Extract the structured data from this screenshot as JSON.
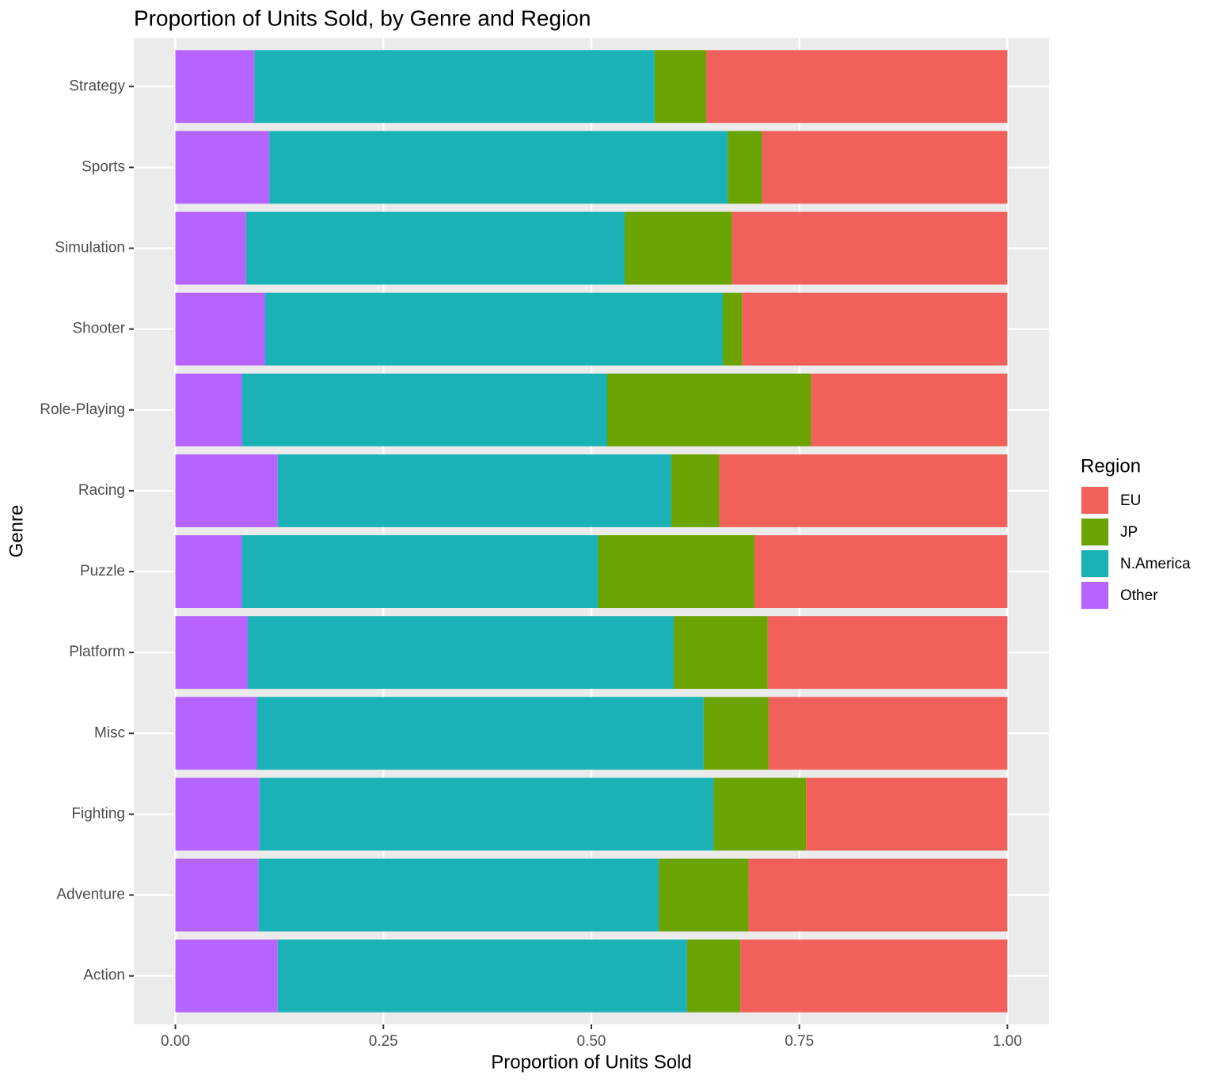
{
  "chart_data": {
    "type": "stacked-barh",
    "title": "Proportion of Units Sold, by Genre and Region",
    "x_label": "Proportion of Units Sold",
    "y_label": "Genre",
    "legend_title": "Region",
    "legend_position": "right",
    "grid": true,
    "categories": [
      "Action",
      "Adventure",
      "Fighting",
      "Misc",
      "Platform",
      "Puzzle",
      "Racing",
      "Role-Playing",
      "Shooter",
      "Simulation",
      "Sports",
      "Strategy"
    ],
    "series": [
      {
        "name": "EU",
        "color": "#F2605B",
        "values": [
          0.321,
          0.311,
          0.242,
          0.287,
          0.288,
          0.304,
          0.346,
          0.236,
          0.319,
          0.331,
          0.295,
          0.362
        ]
      },
      {
        "name": "JP",
        "color": "#6BA300",
        "values": [
          0.064,
          0.108,
          0.111,
          0.078,
          0.113,
          0.188,
          0.058,
          0.245,
          0.023,
          0.129,
          0.041,
          0.062
        ]
      },
      {
        "name": "N.America",
        "color": "#1AB2B7",
        "values": [
          0.492,
          0.481,
          0.546,
          0.537,
          0.512,
          0.428,
          0.473,
          0.439,
          0.55,
          0.455,
          0.551,
          0.481
        ]
      },
      {
        "name": "Other",
        "color": "#B763FF",
        "values": [
          0.123,
          0.1,
          0.101,
          0.098,
          0.087,
          0.08,
          0.123,
          0.08,
          0.108,
          0.085,
          0.113,
          0.095
        ]
      }
    ],
    "xlim": [
      -0.05,
      1.05
    ],
    "xticks": [
      {
        "value": 0,
        "label": "0.00"
      },
      {
        "value": 0.25,
        "label": "0.25"
      },
      {
        "value": 0.5,
        "label": "0.50"
      },
      {
        "value": 0.75,
        "label": "0.75"
      },
      {
        "value": 1,
        "label": "1.00"
      }
    ]
  }
}
